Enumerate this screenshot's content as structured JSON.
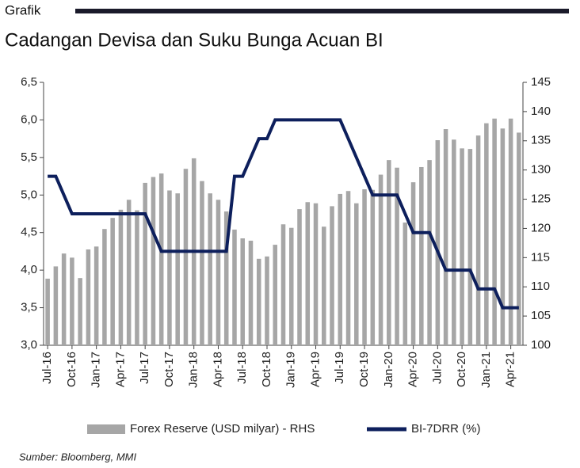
{
  "header": "Grafik",
  "chart_data": {
    "type": "bar",
    "title": "Cadangan Devisa dan Suku Bunga Acuan BI",
    "source": "Sumber: Bloomberg, MMI",
    "categories": [
      "Jul-16",
      null,
      null,
      "Oct-16",
      null,
      null,
      "Jan-17",
      null,
      null,
      "Apr-17",
      null,
      null,
      "Jul-17",
      null,
      null,
      "Oct-17",
      null,
      null,
      "Jan-18",
      null,
      null,
      "Apr-18",
      null,
      null,
      "Jul-18",
      null,
      null,
      "Oct-18",
      null,
      null,
      "Jan-19",
      null,
      null,
      "Apr-19",
      null,
      null,
      "Jul-19",
      null,
      null,
      "Oct-19",
      null,
      null,
      "Jan-20",
      null,
      null,
      "Apr-20",
      null,
      null,
      "Jul-20",
      null,
      null,
      "Oct-20",
      null,
      null,
      "Jan-21",
      null,
      null,
      "Apr-21",
      null
    ],
    "series": [
      {
        "name": "Forex Reserve (USD milyar) - RHS",
        "type": "bar",
        "axis": "y2",
        "color": "#a6a6a6",
        "values": [
          111.4,
          113.5,
          115.7,
          115.0,
          111.5,
          116.4,
          116.9,
          119.9,
          121.8,
          123.2,
          124.9,
          123.1,
          127.8,
          128.8,
          129.4,
          126.5,
          126.0,
          130.2,
          132.0,
          128.1,
          126.0,
          124.9,
          122.9,
          119.8,
          118.3,
          117.9,
          114.8,
          115.2,
          117.2,
          120.7,
          120.1,
          123.3,
          124.5,
          124.3,
          120.3,
          123.8,
          125.9,
          126.4,
          124.3,
          126.7,
          126.6,
          129.2,
          131.7,
          130.4,
          121.0,
          127.9,
          130.5,
          131.7,
          135.1,
          137.0,
          135.2,
          133.7,
          133.6,
          135.9,
          138.0,
          138.8,
          137.1,
          138.8,
          136.4
        ]
      },
      {
        "name": "BI-7DRR (%)",
        "type": "line",
        "axis": "y",
        "color": "#0d1f5c",
        "values": [
          5.25,
          5.25,
          5.0,
          4.75,
          4.75,
          4.75,
          4.75,
          4.75,
          4.75,
          4.75,
          4.75,
          4.75,
          4.75,
          4.5,
          4.25,
          4.25,
          4.25,
          4.25,
          4.25,
          4.25,
          4.25,
          4.25,
          4.25,
          5.25,
          5.25,
          5.5,
          5.75,
          5.75,
          6.0,
          6.0,
          6.0,
          6.0,
          6.0,
          6.0,
          6.0,
          6.0,
          6.0,
          5.75,
          5.5,
          5.25,
          5.0,
          5.0,
          5.0,
          5.0,
          4.75,
          4.5,
          4.5,
          4.5,
          4.25,
          4.0,
          4.0,
          4.0,
          4.0,
          3.75,
          3.75,
          3.75,
          3.5,
          3.5,
          3.5
        ]
      }
    ],
    "ylim": [
      3.0,
      6.5
    ],
    "yticks": [
      {
        "value": 3.0,
        "label": "3,0"
      },
      {
        "value": 3.5,
        "label": "3,5"
      },
      {
        "value": 4.0,
        "label": "4,0"
      },
      {
        "value": 4.5,
        "label": "4,5"
      },
      {
        "value": 5.0,
        "label": "5,0"
      },
      {
        "value": 5.5,
        "label": "5,5"
      },
      {
        "value": 6.0,
        "label": "6,0"
      },
      {
        "value": 6.5,
        "label": "6,5"
      }
    ],
    "y2lim": [
      100,
      145
    ],
    "y2ticks": [
      100,
      105,
      110,
      115,
      120,
      125,
      130,
      135,
      140,
      145
    ],
    "grid": false
  }
}
